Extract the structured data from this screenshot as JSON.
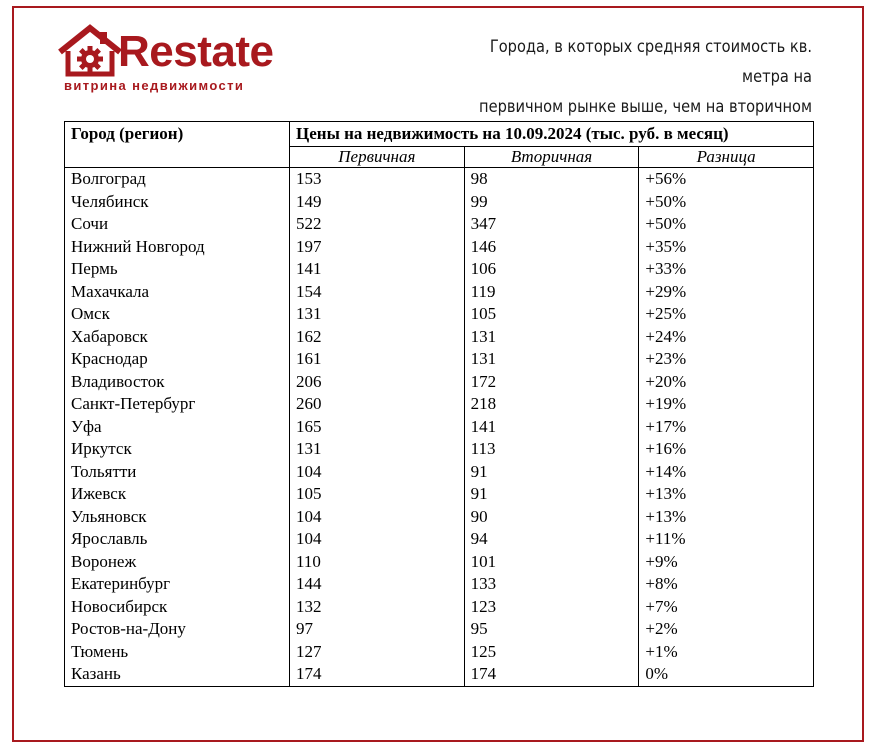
{
  "brand": {
    "name": "Restate",
    "tagline": "витрина недвижимости",
    "color": "#a8191e"
  },
  "heading": {
    "line1": "Города, в которых средняя стоимость кв. метра на",
    "line2": "первичном рынке выше, чем на вторичном"
  },
  "table": {
    "city_header": "Город (регион)",
    "group_header": "Цены на недвижимость на 10.09.2024 (тыс. руб. в месяц)",
    "columns": [
      "Первичная",
      "Вторичная",
      "Разница"
    ],
    "rows": [
      {
        "city": "Волгоград",
        "primary": "153",
        "secondary": "98",
        "diff": "+56%"
      },
      {
        "city": "Челябинск",
        "primary": "149",
        "secondary": "99",
        "diff": "+50%"
      },
      {
        "city": "Сочи",
        "primary": "522",
        "secondary": "347",
        "diff": "+50%"
      },
      {
        "city": "Нижний Новгород",
        "primary": "197",
        "secondary": "146",
        "diff": "+35%"
      },
      {
        "city": "Пермь",
        "primary": "141",
        "secondary": "106",
        "diff": "+33%"
      },
      {
        "city": "Махачкала",
        "primary": "154",
        "secondary": "119",
        "diff": "+29%"
      },
      {
        "city": "Омск",
        "primary": "131",
        "secondary": "105",
        "diff": "+25%"
      },
      {
        "city": "Хабаровск",
        "primary": "162",
        "secondary": "131",
        "diff": "+24%"
      },
      {
        "city": "Краснодар",
        "primary": "161",
        "secondary": "131",
        "diff": "+23%"
      },
      {
        "city": "Владивосток",
        "primary": "206",
        "secondary": "172",
        "diff": "+20%"
      },
      {
        "city": "Санкт-Петербург",
        "primary": "260",
        "secondary": "218",
        "diff": "+19%"
      },
      {
        "city": "Уфа",
        "primary": "165",
        "secondary": "141",
        "diff": "+17%"
      },
      {
        "city": "Иркутск",
        "primary": "131",
        "secondary": "113",
        "diff": "+16%"
      },
      {
        "city": "Тольятти",
        "primary": "104",
        "secondary": "91",
        "diff": "+14%"
      },
      {
        "city": "Ижевск",
        "primary": "105",
        "secondary": "91",
        "diff": "+13%"
      },
      {
        "city": "Ульяновск",
        "primary": "104",
        "secondary": "90",
        "diff": "+13%"
      },
      {
        "city": "Ярославль",
        "primary": "104",
        "secondary": "94",
        "diff": "+11%"
      },
      {
        "city": "Воронеж",
        "primary": "110",
        "secondary": "101",
        "diff": "+9%"
      },
      {
        "city": "Екатеринбург",
        "primary": "144",
        "secondary": "133",
        "diff": "+8%"
      },
      {
        "city": "Новосибирск",
        "primary": "132",
        "secondary": "123",
        "diff": "+7%"
      },
      {
        "city": "Ростов-на-Дону",
        "primary": "97",
        "secondary": "95",
        "diff": "+2%"
      },
      {
        "city": "Тюмень",
        "primary": "127",
        "secondary": "125",
        "diff": "+1%"
      },
      {
        "city": "Казань",
        "primary": "174",
        "secondary": "174",
        "diff": "0%"
      }
    ]
  }
}
